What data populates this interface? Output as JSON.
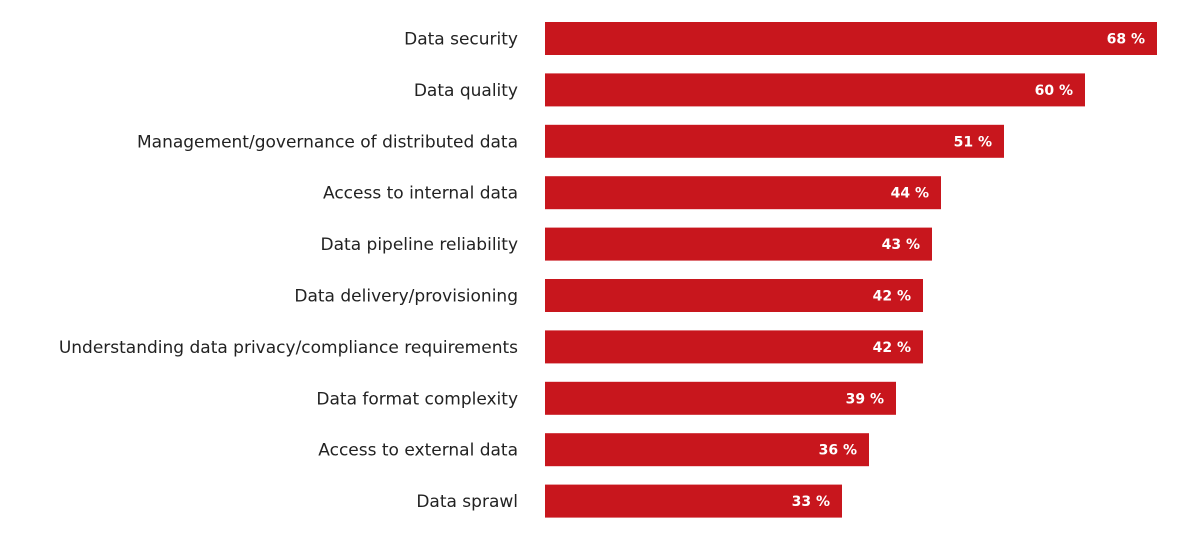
{
  "chart_data": {
    "type": "bar",
    "orientation": "horizontal",
    "categories": [
      "Data security",
      "Data quality",
      "Management/governance of distributed data",
      "Access to internal data",
      "Data pipeline reliability",
      "Data delivery/provisioning",
      "Understanding data privacy/compliance requirements",
      "Data format complexity",
      "Access to external data",
      "Data sprawl"
    ],
    "values": [
      68,
      60,
      51,
      44,
      43,
      42,
      42,
      39,
      36,
      33
    ],
    "value_labels": [
      "68 %",
      "60 %",
      "51 %",
      "44 %",
      "43 %",
      "42 %",
      "42 %",
      "39 %",
      "36 %",
      "33 %"
    ],
    "unit": "%",
    "title": "",
    "xlabel": "",
    "ylabel": "",
    "xlim": [
      0,
      68
    ],
    "grid": false,
    "bar_color": "#c8161d",
    "value_label_color": "#ffffff"
  }
}
